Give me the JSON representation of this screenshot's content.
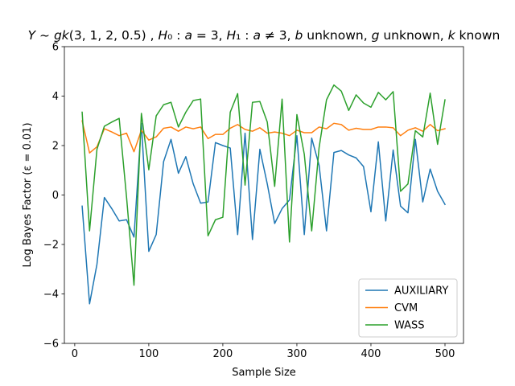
{
  "chart_data": {
    "type": "line",
    "title": "Y ~ gk(3, 1, 2, 0.5) , H₀ : a = 3, H₁ : a ≠ 3,  b unknown, g unknown, k known",
    "title_segments": [
      {
        "text": "Y",
        "italic": true
      },
      {
        "text": " ~ ",
        "italic": false
      },
      {
        "text": "gk",
        "italic": true
      },
      {
        "text": "(3, 1, 2, 0.5) , ",
        "italic": false
      },
      {
        "text": "H",
        "italic": true
      },
      {
        "text": "₀",
        "italic": false
      },
      {
        "text": " : ",
        "italic": false
      },
      {
        "text": "a",
        "italic": true
      },
      {
        "text": " = 3, ",
        "italic": false
      },
      {
        "text": "H",
        "italic": true
      },
      {
        "text": "₁",
        "italic": false
      },
      {
        "text": " : ",
        "italic": false
      },
      {
        "text": "a",
        "italic": true
      },
      {
        "text": " ≠ 3,  ",
        "italic": false
      },
      {
        "text": "b",
        "italic": true
      },
      {
        "text": " unknown, ",
        "italic": false
      },
      {
        "text": "g",
        "italic": true
      },
      {
        "text": " unknown, ",
        "italic": false
      },
      {
        "text": "k",
        "italic": true
      },
      {
        "text": " known",
        "italic": false
      }
    ],
    "xlabel": "Sample Size",
    "ylabel": "Log Bayes Factor (ε = 0.01)",
    "xlim": [
      -14,
      525
    ],
    "ylim": [
      -6,
      6
    ],
    "xticks": [
      0,
      100,
      200,
      300,
      400,
      500
    ],
    "yticks": [
      -6,
      -4,
      -2,
      0,
      2,
      4,
      6
    ],
    "grid": false,
    "legend_position": "lower-right",
    "x": [
      10,
      20,
      30,
      40,
      50,
      60,
      70,
      80,
      90,
      100,
      110,
      120,
      130,
      140,
      150,
      160,
      170,
      180,
      190,
      200,
      210,
      220,
      230,
      240,
      250,
      260,
      270,
      280,
      290,
      300,
      310,
      320,
      330,
      340,
      350,
      360,
      370,
      380,
      390,
      400,
      410,
      420,
      430,
      440,
      450,
      460,
      470,
      480,
      490,
      500
    ],
    "series": [
      {
        "name": "AUXILIARY",
        "color": "#1f77b4",
        "values": [
          -0.45,
          -4.4,
          -2.8,
          -0.1,
          -0.55,
          -1.05,
          -1.0,
          -1.7,
          2.9,
          -2.28,
          -1.6,
          1.35,
          2.25,
          0.88,
          1.55,
          0.45,
          -0.33,
          -0.28,
          2.12,
          2.0,
          1.9,
          -1.6,
          2.5,
          -1.8,
          1.85,
          0.45,
          -1.15,
          -0.55,
          -0.2,
          2.4,
          -1.6,
          2.3,
          1.2,
          -1.45,
          1.72,
          1.8,
          1.62,
          1.5,
          1.15,
          -0.68,
          2.15,
          -1.05,
          1.82,
          -0.45,
          -0.72,
          2.25,
          -0.28,
          1.05,
          0.15,
          -0.38
        ]
      },
      {
        "name": "CVM",
        "color": "#ff7f0e",
        "values": [
          3.0,
          1.7,
          1.95,
          2.68,
          2.55,
          2.4,
          2.5,
          1.75,
          2.62,
          2.22,
          2.35,
          2.7,
          2.75,
          2.58,
          2.75,
          2.68,
          2.75,
          2.28,
          2.45,
          2.45,
          2.7,
          2.85,
          2.65,
          2.58,
          2.72,
          2.5,
          2.55,
          2.5,
          2.4,
          2.62,
          2.52,
          2.52,
          2.75,
          2.68,
          2.9,
          2.85,
          2.62,
          2.7,
          2.65,
          2.65,
          2.75,
          2.75,
          2.72,
          2.4,
          2.62,
          2.72,
          2.58,
          2.85,
          2.6,
          2.68
        ]
      },
      {
        "name": "WASS",
        "color": "#2ca02c",
        "values": [
          3.35,
          -1.45,
          1.85,
          2.78,
          2.95,
          3.1,
          -0.1,
          -3.65,
          3.3,
          1.02,
          3.2,
          3.65,
          3.75,
          2.75,
          3.35,
          3.82,
          3.88,
          -1.65,
          -1.0,
          -0.9,
          3.35,
          4.1,
          0.4,
          3.75,
          3.78,
          2.95,
          0.35,
          3.88,
          -1.9,
          3.25,
          1.65,
          -1.45,
          1.92,
          3.85,
          4.45,
          4.2,
          3.42,
          4.05,
          3.72,
          3.55,
          4.15,
          3.85,
          4.18,
          0.15,
          0.45,
          2.6,
          2.35,
          4.12,
          2.05,
          3.85
        ]
      }
    ]
  }
}
